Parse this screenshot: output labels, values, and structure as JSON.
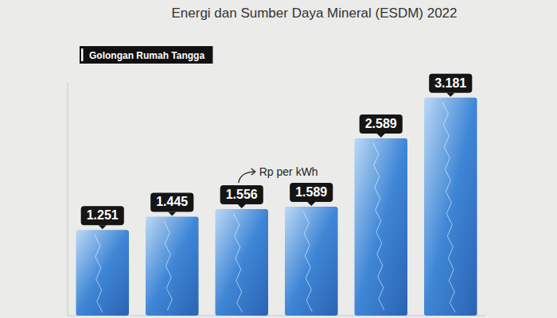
{
  "chart_data": {
    "type": "bar",
    "title": "Energi dan Sumber Daya Mineral  (ESDM)  2022",
    "subtitle": "Golongan Rumah Tangga",
    "annotations": [
      "Rp per kWh"
    ],
    "categories": [
      null,
      null,
      null,
      null,
      null,
      null
    ],
    "values": [
      1251,
      1445,
      1556,
      1589,
      2589,
      3181
    ],
    "value_labels": [
      "1.251",
      "1.445",
      "1.556",
      "1.589",
      "2.589",
      "3.181"
    ],
    "color": "#3f86d6",
    "ylim": [
      0,
      3400
    ],
    "yticks": [],
    "grid": false,
    "data_labels": true,
    "tick_labels": false
  }
}
